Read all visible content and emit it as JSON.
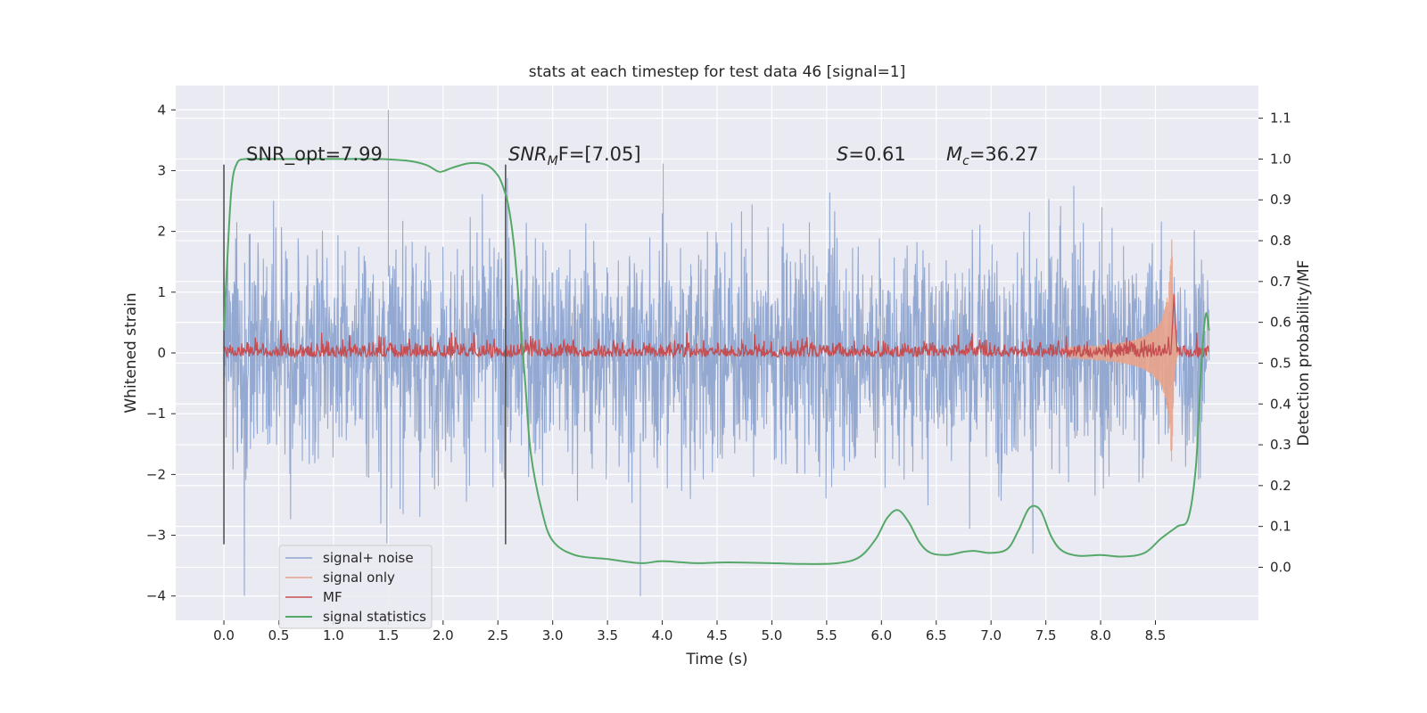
{
  "chart_data": {
    "type": "line",
    "title": "stats at each timestep for test data 46 [signal=1]",
    "xlabel": "Time (s)",
    "ylabel": "Whitened strain",
    "y2label": "Detection probability/MF",
    "xlim": [
      -0.44,
      9.44
    ],
    "ylim": [
      -4.4,
      4.4
    ],
    "y2lim": [
      -0.13,
      1.18
    ],
    "xticks": [
      0.0,
      0.5,
      1.0,
      1.5,
      2.0,
      2.5,
      3.0,
      3.5,
      4.0,
      4.5,
      5.0,
      5.5,
      6.0,
      6.5,
      7.0,
      7.5,
      8.0,
      8.5
    ],
    "xtick_labels": [
      "0.0",
      "0.5",
      "1.0",
      "1.5",
      "2.0",
      "2.5",
      "3.0",
      "3.5",
      "4.0",
      "4.5",
      "5.0",
      "5.5",
      "6.0",
      "6.5",
      "7.0",
      "7.5",
      "8.0",
      "8.5"
    ],
    "yticks": [
      -4,
      -3,
      -2,
      -1,
      0,
      1,
      2,
      3,
      4
    ],
    "ytick_labels": [
      "−4",
      "−3",
      "−2",
      "−1",
      "0",
      "1",
      "2",
      "3",
      "4"
    ],
    "y2ticks": [
      0.0,
      0.1,
      0.2,
      0.3,
      0.4,
      0.5,
      0.6,
      0.7,
      0.8,
      0.9,
      1.0,
      1.1
    ],
    "y2tick_labels": [
      "0.0",
      "0.1",
      "0.2",
      "0.3",
      "0.4",
      "0.5",
      "0.6",
      "0.7",
      "0.8",
      "0.9",
      "1.0",
      "1.1"
    ],
    "grid": true,
    "legend_position": "lower-left",
    "series": [
      {
        "name": "signal+ noise",
        "color": "#8fa5cf",
        "axis": "left",
        "x_range": [
          0.0,
          8.99
        ],
        "envelope": {
          "typical_upper": 2.1,
          "typical_lower": -2.2,
          "max": 4.0,
          "min": -4.0
        }
      },
      {
        "name": "signal only",
        "color": "#e8a389",
        "axis": "left",
        "chirp_start": 7.7,
        "merger_time": 8.65,
        "peak_amplitude": 2.1
      },
      {
        "name": "MF",
        "color": "#c44e52",
        "axis": "right",
        "x_range": [
          0.0,
          8.99
        ],
        "baseline": 0.515,
        "peak": {
          "x": 8.67,
          "y": 0.67
        }
      },
      {
        "name": "signal statistics",
        "color": "#55a868",
        "axis": "right",
        "x": [
          0.0,
          0.03,
          0.07,
          0.12,
          0.2,
          0.35,
          0.6,
          1.0,
          1.4,
          1.7,
          1.85,
          1.95,
          2.0,
          2.1,
          2.25,
          2.4,
          2.5,
          2.55,
          2.6,
          2.65,
          2.7,
          2.75,
          2.8,
          2.9,
          3.0,
          3.2,
          3.5,
          3.8,
          4.0,
          4.3,
          4.6,
          5.0,
          5.3,
          5.6,
          5.8,
          5.95,
          6.05,
          6.15,
          6.25,
          6.35,
          6.45,
          6.6,
          6.75,
          6.85,
          7.0,
          7.15,
          7.25,
          7.35,
          7.45,
          7.55,
          7.65,
          7.8,
          8.0,
          8.2,
          8.4,
          8.55,
          8.7,
          8.8,
          8.87,
          8.92,
          8.96,
          8.99
        ],
        "values": [
          0.58,
          0.75,
          0.93,
          0.99,
          1.0,
          1.0,
          1.0,
          1.0,
          1.0,
          0.995,
          0.985,
          0.97,
          0.97,
          0.98,
          0.99,
          0.985,
          0.96,
          0.93,
          0.88,
          0.78,
          0.62,
          0.45,
          0.28,
          0.14,
          0.065,
          0.03,
          0.02,
          0.01,
          0.015,
          0.01,
          0.012,
          0.01,
          0.008,
          0.01,
          0.025,
          0.07,
          0.12,
          0.14,
          0.11,
          0.06,
          0.035,
          0.03,
          0.038,
          0.04,
          0.035,
          0.045,
          0.09,
          0.145,
          0.14,
          0.075,
          0.04,
          0.028,
          0.03,
          0.026,
          0.035,
          0.07,
          0.1,
          0.12,
          0.25,
          0.5,
          0.62,
          0.58
        ]
      },
      {
        "name": "vline-start",
        "color": "#555555",
        "axis": "left",
        "x": [
          0.0,
          0.0
        ],
        "values": [
          -3.15,
          3.1
        ]
      },
      {
        "name": "vline-mid",
        "color": "#555555",
        "axis": "left",
        "x": [
          2.57,
          2.57
        ],
        "values": [
          -3.15,
          3.1
        ]
      }
    ],
    "annotations": [
      {
        "id": "snr-opt",
        "text": "SNR_opt=7.99",
        "x": 0.2,
        "y": 3.15
      },
      {
        "id": "snr-mf",
        "text": "SNR_MF=[7.05]",
        "x": 2.6,
        "y": 3.15
      },
      {
        "id": "s-value",
        "text": "S=0.61",
        "x": 5.6,
        "y": 3.15
      },
      {
        "id": "mc-value",
        "text": "M_c=36.27",
        "x": 6.6,
        "y": 3.15
      }
    ],
    "annotation_parts": {
      "snr_opt": "SNR_opt=7.99",
      "snr_mf_main": "SNR",
      "snr_mf_sub": "M",
      "snr_mf_rest": "F=[7.05]",
      "s_main": "S",
      "s_rest": "=0.61",
      "mc_main": "M",
      "mc_sub": "c",
      "mc_rest": "=36.27"
    }
  }
}
